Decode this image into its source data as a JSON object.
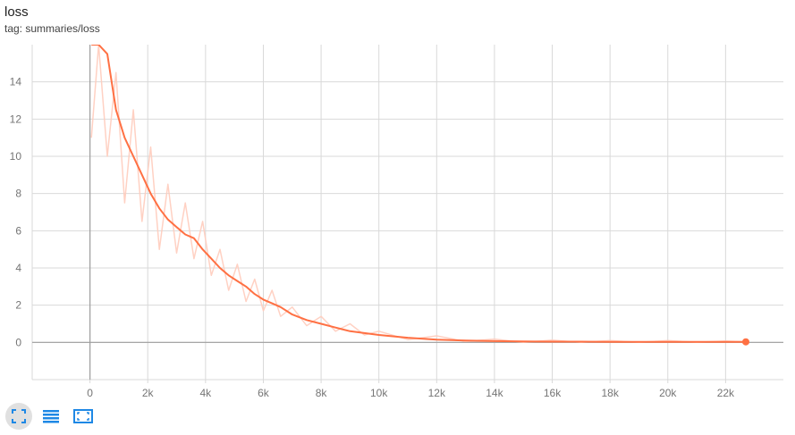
{
  "header": {
    "title": "loss",
    "tag": "tag: summaries/loss"
  },
  "colors": {
    "series": "#ff7043",
    "raw": "#ffccbc",
    "grid": "#d9d9d9",
    "zero_axis": "#9e9e9e",
    "tick_text": "#757575",
    "icon": "#1e88e5"
  },
  "toolbar": [
    {
      "name": "fit-domain-icon",
      "active": true
    },
    {
      "name": "log-scale-icon",
      "active": false
    },
    {
      "name": "expand-chart-icon",
      "active": false
    }
  ],
  "chart_data": {
    "type": "line",
    "title": "loss",
    "xlabel": "",
    "ylabel": "",
    "xlim": [
      -2000,
      24000
    ],
    "ylim": [
      -2,
      16
    ],
    "x_ticks": [
      0,
      2000,
      4000,
      6000,
      8000,
      10000,
      12000,
      14000,
      16000,
      18000,
      20000,
      22000
    ],
    "x_tick_labels": [
      "0",
      "2k",
      "4k",
      "6k",
      "8k",
      "10k",
      "12k",
      "14k",
      "16k",
      "18k",
      "20k",
      "22k"
    ],
    "y_ticks": [
      0,
      2,
      4,
      6,
      8,
      10,
      12,
      14
    ],
    "y_tick_labels": [
      "0",
      "2",
      "4",
      "6",
      "8",
      "10",
      "12",
      "14"
    ],
    "grid": true,
    "series": [
      {
        "smoothed": true,
        "x": [
          50,
          300,
          600,
          900,
          1200,
          1500,
          1800,
          2100,
          2400,
          2700,
          3000,
          3300,
          3600,
          3900,
          4200,
          4500,
          4800,
          5100,
          5400,
          5700,
          6000,
          6300,
          6600,
          7000,
          7500,
          8000,
          8500,
          9000,
          9500,
          10000,
          11000,
          12000,
          13000,
          14000,
          15000,
          16000,
          17000,
          18000,
          19000,
          20000,
          21000,
          22000,
          22700
        ],
        "y": [
          16.0,
          16.0,
          15.5,
          12.5,
          11.0,
          10.0,
          9.0,
          8.0,
          7.2,
          6.6,
          6.2,
          5.8,
          5.6,
          5.0,
          4.5,
          4.0,
          3.6,
          3.3,
          3.0,
          2.6,
          2.3,
          2.1,
          1.9,
          1.5,
          1.2,
          1.0,
          0.8,
          0.6,
          0.5,
          0.4,
          0.25,
          0.15,
          0.1,
          0.07,
          0.05,
          0.04,
          0.04,
          0.03,
          0.03,
          0.03,
          0.03,
          0.03,
          0.03
        ]
      },
      {
        "smoothed": false,
        "x": [
          50,
          300,
          600,
          900,
          1200,
          1500,
          1800,
          2100,
          2400,
          2700,
          3000,
          3300,
          3600,
          3900,
          4200,
          4500,
          4800,
          5100,
          5400,
          5700,
          6000,
          6300,
          6600,
          7000,
          7500,
          8000,
          8500,
          9000,
          9500,
          10000,
          11000,
          12000,
          13000,
          14000,
          15000,
          16000,
          17000,
          18000,
          19000,
          20000,
          21000,
          22000,
          22700
        ],
        "y": [
          11.0,
          16.0,
          10.0,
          14.5,
          7.5,
          12.5,
          6.5,
          10.5,
          5.0,
          8.5,
          4.8,
          7.5,
          4.5,
          6.5,
          3.6,
          5.0,
          2.8,
          4.2,
          2.2,
          3.4,
          1.7,
          2.8,
          1.4,
          1.9,
          0.9,
          1.4,
          0.6,
          1.0,
          0.4,
          0.6,
          0.15,
          0.35,
          0.05,
          0.18,
          0.0,
          0.12,
          0.0,
          0.1,
          0.0,
          0.1,
          0.0,
          0.08,
          0.03
        ]
      }
    ],
    "last_point": {
      "x": 22700,
      "y": 0.03
    }
  }
}
